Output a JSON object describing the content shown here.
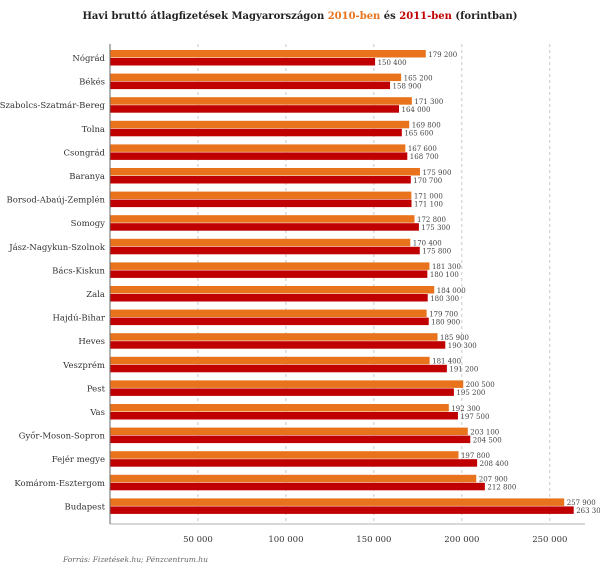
{
  "title": {
    "prefix": "Havi bruttó átlagfizetések Magyarországon ",
    "year1": "2010-ben",
    "middle": " és ",
    "year2": "2011-ben",
    "suffix": " (forintban)"
  },
  "source": "Forrás: Fizetések.hu; Pénzcentrum.hu",
  "chart_data": {
    "type": "bar",
    "orientation": "horizontal",
    "title": "Havi bruttó átlagfizetések Magyarországon 2010-ben és 2011-ben (forintban)",
    "categories": [
      "Nógrád",
      "Békés",
      "Szabolcs-Szatmár-Bereg",
      "Tolna",
      "Csongrád",
      "Baranya",
      "Borsod-Abaúj-Zemplén",
      "Somogy",
      "Jász-Nagykun-Szolnok",
      "Bács-Kiskun",
      "Zala",
      "Hajdú-Bihar",
      "Heves",
      "Veszprém",
      "Pest",
      "Vas",
      "Győr-Moson-Sopron",
      "Fejér megye",
      "Komárom-Esztergom",
      "Budapest"
    ],
    "series": [
      {
        "name": "2010-ben",
        "color": "#e8731c",
        "values": [
          179200,
          165200,
          171300,
          169800,
          167600,
          175900,
          171000,
          172800,
          170400,
          181300,
          184000,
          179700,
          185900,
          181400,
          200500,
          192300,
          203100,
          197800,
          207900,
          257900
        ],
        "labels": [
          "179 200",
          "165 200",
          "171 300",
          "169 800",
          "167 600",
          "175 900",
          "171 000",
          "172 800",
          "170 400",
          "181 300",
          "184 000",
          "179 700",
          "185 900",
          "181 400",
          "200 500",
          "192 300",
          "203 100",
          "197 800",
          "207 900",
          "257 900"
        ]
      },
      {
        "name": "2011-ben",
        "color": "#c00000",
        "values": [
          150400,
          158900,
          164000,
          165600,
          168700,
          170700,
          171100,
          175300,
          175800,
          180100,
          180300,
          180900,
          190300,
          191200,
          195200,
          197500,
          204500,
          208400,
          212800,
          263300
        ],
        "labels": [
          "150 400",
          "158 900",
          "164 000",
          "165 600",
          "168 700",
          "170 700",
          "171 100",
          "175 300",
          "175 800",
          "180 100",
          "180 300",
          "180 900",
          "190 300",
          "191 200",
          "195 200",
          "197 500",
          "204 500",
          "208 400",
          "212 800",
          "263 300"
        ]
      }
    ],
    "xlim": [
      0,
      270000
    ],
    "xticks": [
      50000,
      100000,
      150000,
      200000,
      250000
    ],
    "xtick_labels": [
      "50 000",
      "100 000",
      "150 000",
      "200 000",
      "250 000"
    ],
    "grid": true
  }
}
